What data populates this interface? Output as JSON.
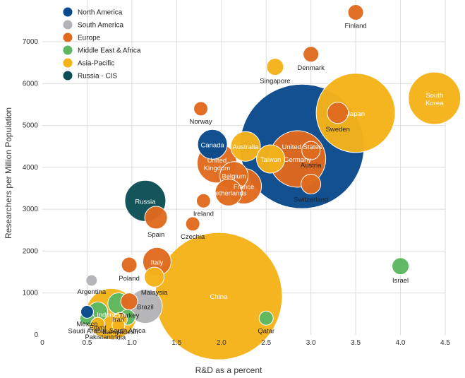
{
  "chart_data": {
    "type": "scatter",
    "subtype": "bubble",
    "xlabel": "R&D as a percent",
    "ylabel": "Researchers per Million Population",
    "xlim": [
      0,
      4.5
    ],
    "ylim": [
      0,
      7900
    ],
    "x_ticks": [
      "0",
      "0.5",
      "1.0",
      "1.5",
      "2.0",
      "2.5",
      "3.0",
      "3.5",
      "4.0",
      "4.5"
    ],
    "x_tick_values": [
      0,
      0.5,
      1.0,
      1.5,
      2.0,
      2.5,
      3.0,
      3.5,
      4.0,
      4.5
    ],
    "y_ticks": [
      "0",
      "1000",
      "2000",
      "3000",
      "4000",
      "5000",
      "6000",
      "7000"
    ],
    "y_tick_values": [
      0,
      1000,
      2000,
      3000,
      4000,
      5000,
      6000,
      7000
    ],
    "grid": true,
    "legend_position": "top-left",
    "legend": [
      {
        "name": "North America",
        "color": "#0a4a8c"
      },
      {
        "name": "South America",
        "color": "#b4b4b8"
      },
      {
        "name": "Europe",
        "color": "#e06a1e"
      },
      {
        "name": "Middle East & Africa",
        "color": "#5cb860"
      },
      {
        "name": "Asia-Pacific",
        "color": "#f5b31a"
      },
      {
        "name": "Russia - CIS",
        "color": "#0c4f57"
      }
    ],
    "region_colors": {
      "north_america": "#0a4a8c",
      "south_america": "#b4b4b8",
      "europe": "#e06a1e",
      "middle_east_africa": "#5cb860",
      "asia_pacific": "#f5b31a",
      "russia_cis": "#0c4f57"
    },
    "bubbles": [
      {
        "label": "China",
        "region": "asia_pacific",
        "x": 1.97,
        "y": 925,
        "r": 90
      },
      {
        "label": "United States",
        "region": "north_america",
        "x": 2.9,
        "y": 4500,
        "r": 88
      },
      {
        "label": "Japan",
        "region": "asia_pacific",
        "x": 3.5,
        "y": 5300,
        "r": 56
      },
      {
        "label": "South Korea",
        "region": "asia_pacific",
        "x": 4.38,
        "y": 5650,
        "r": 37
      },
      {
        "label": "Germany",
        "region": "europe",
        "x": 2.85,
        "y": 4200,
        "r": 40
      },
      {
        "label": "Indonesia",
        "region": "asia_pacific",
        "x": 0.77,
        "y": 500,
        "r": 36
      },
      {
        "label": "Brazil",
        "region": "south_america",
        "x": 1.15,
        "y": 680,
        "r": 24
      },
      {
        "label": "Russia",
        "region": "russia_cis",
        "x": 1.15,
        "y": 3200,
        "r": 29
      },
      {
        "label": "France",
        "region": "europe",
        "x": 2.25,
        "y": 3550,
        "r": 25
      },
      {
        "label": "United Kingdom",
        "region": "europe",
        "x": 1.95,
        "y": 4100,
        "r": 28
      },
      {
        "label": "Canada",
        "region": "north_america",
        "x": 1.9,
        "y": 4550,
        "r": 21
      },
      {
        "label": "Australia",
        "region": "asia_pacific",
        "x": 2.27,
        "y": 4500,
        "r": 21
      },
      {
        "label": "Italy",
        "region": "europe",
        "x": 1.28,
        "y": 1750,
        "r": 20
      },
      {
        "label": "Spain",
        "region": "europe",
        "x": 1.27,
        "y": 2800,
        "r": 16
      },
      {
        "label": "Taiwan",
        "region": "asia_pacific",
        "x": 2.55,
        "y": 4200,
        "r": 20
      },
      {
        "label": "Belgium",
        "region": "europe",
        "x": 2.14,
        "y": 3800,
        "r": 20
      },
      {
        "label": "Netherlands",
        "region": "europe",
        "x": 2.08,
        "y": 3400,
        "r": 19
      },
      {
        "label": "Switzerland",
        "region": "europe",
        "x": 3.0,
        "y": 3600,
        "r": 14
      },
      {
        "label": "Austria",
        "region": "europe",
        "x": 3.0,
        "y": 4400,
        "r": 13
      },
      {
        "label": "Sweden",
        "region": "europe",
        "x": 3.3,
        "y": 5300,
        "r": 15
      },
      {
        "label": "Singapore",
        "region": "asia_pacific",
        "x": 2.6,
        "y": 6400,
        "r": 12
      },
      {
        "label": "Denmark",
        "region": "europe",
        "x": 3.0,
        "y": 6700,
        "r": 11
      },
      {
        "label": "Finland",
        "region": "europe",
        "x": 3.5,
        "y": 7700,
        "r": 11
      },
      {
        "label": "Norway",
        "region": "europe",
        "x": 1.77,
        "y": 5400,
        "r": 10
      },
      {
        "label": "Ireland",
        "region": "europe",
        "x": 1.8,
        "y": 3200,
        "r": 10
      },
      {
        "label": "Czechia",
        "region": "europe",
        "x": 1.68,
        "y": 2650,
        "r": 10
      },
      {
        "label": "Poland",
        "region": "europe",
        "x": 0.97,
        "y": 1670,
        "r": 11
      },
      {
        "label": "Malaysia",
        "region": "asia_pacific",
        "x": 1.25,
        "y": 1380,
        "r": 14
      },
      {
        "label": "Turkey",
        "region": "europe",
        "x": 0.97,
        "y": 800,
        "r": 12
      },
      {
        "label": "Argentina",
        "region": "south_america",
        "x": 0.55,
        "y": 1300,
        "r": 8
      },
      {
        "label": "Iran",
        "region": "middle_east_africa",
        "x": 0.85,
        "y": 750,
        "r": 15
      },
      {
        "label": "Egypt",
        "region": "middle_east_africa",
        "x": 0.62,
        "y": 550,
        "r": 14
      },
      {
        "label": "Mexico",
        "region": "north_america",
        "x": 0.5,
        "y": 550,
        "r": 9
      },
      {
        "label": "Saudi Arabia",
        "region": "middle_east_africa",
        "x": 0.5,
        "y": 400,
        "r": 10
      },
      {
        "label": "South Africa",
        "region": "middle_east_africa",
        "x": 0.95,
        "y": 420,
        "r": 11
      },
      {
        "label": "Pakistan",
        "region": "asia_pacific",
        "x": 0.62,
        "y": 250,
        "r": 10
      },
      {
        "label": "Bangladesh",
        "region": "asia_pacific",
        "x": 0.87,
        "y": 370,
        "r": 10
      },
      {
        "label": "India",
        "region": "asia_pacific",
        "x": 0.85,
        "y": 230,
        "r": 9
      },
      {
        "label": "Qatar",
        "region": "middle_east_africa",
        "x": 2.5,
        "y": 400,
        "r": 10
      },
      {
        "label": "Israel",
        "region": "middle_east_africa",
        "x": 4.0,
        "y": 1640,
        "r": 12
      }
    ]
  }
}
